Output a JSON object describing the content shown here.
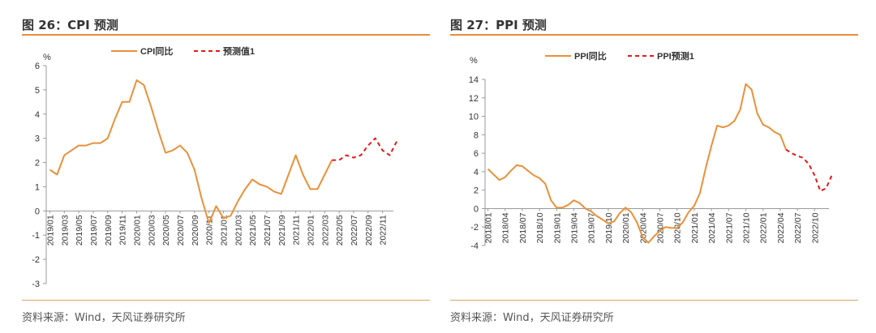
{
  "colors": {
    "actual": "#e8913a",
    "forecast": "#e01b1b",
    "rule": "#e88b3c"
  },
  "left": {
    "title": "图 26：CPI 预测",
    "source": "资料来源：Wind，天风证券研究所"
  },
  "right": {
    "title": "图 27：PPI 预测",
    "source": "资料来源：Wind，天风证券研究所"
  },
  "chart_data": [
    {
      "type": "line",
      "ylabel": "%",
      "ylim": [
        -3,
        6
      ],
      "yticks": [
        "6",
        "5",
        "4",
        "3",
        "2",
        "1",
        "0",
        "-1",
        "-2",
        "-3"
      ],
      "xticks": [
        "2019/01",
        "2019/03",
        "2019/05",
        "2019/07",
        "2019/09",
        "2019/11",
        "2020/01",
        "2020/03",
        "2020/05",
        "2020/07",
        "2020/09",
        "2020/11",
        "2021/01",
        "2021/03",
        "2021/05",
        "2021/07",
        "2021/09",
        "2021/11",
        "2022/01",
        "2022/03",
        "2022/05",
        "2022/07",
        "2022/09",
        "2022/11"
      ],
      "legend_position": "top",
      "series": [
        {
          "name": "CPI同比",
          "style": "solid",
          "start_index": 0,
          "values": [
            1.7,
            1.5,
            2.3,
            2.5,
            2.7,
            2.7,
            2.8,
            2.8,
            3.0,
            3.8,
            4.5,
            4.5,
            5.4,
            5.2,
            4.3,
            3.3,
            2.4,
            2.5,
            2.7,
            2.4,
            1.7,
            0.5,
            -0.5,
            0.2,
            -0.3,
            -0.2,
            0.4,
            0.9,
            1.3,
            1.1,
            1.0,
            0.8,
            0.7,
            1.5,
            2.3,
            1.5,
            0.9,
            0.9,
            1.5,
            2.1
          ]
        },
        {
          "name": "预测值1",
          "style": "dashed",
          "start_index": 39,
          "values": [
            2.1,
            2.1,
            2.3,
            2.2,
            2.3,
            2.7,
            3.0,
            2.5,
            2.3,
            2.9
          ]
        }
      ]
    },
    {
      "type": "line",
      "ylabel": "%",
      "ylim": [
        -4,
        14
      ],
      "yticks": [
        "14",
        "12",
        "10",
        "8",
        "6",
        "4",
        "2",
        "0",
        "-2",
        "-4"
      ],
      "xticks": [
        "2018/01",
        "2018/04",
        "2018/07",
        "2018/10",
        "2019/01",
        "2019/04",
        "2019/07",
        "2019/10",
        "2020/01",
        "2020/04",
        "2020/07",
        "2020/10",
        "2021/01",
        "2021/04",
        "2021/07",
        "2021/10",
        "2022/01",
        "2022/04",
        "2022/07",
        "2022/10"
      ],
      "legend_position": "top",
      "series": [
        {
          "name": "PPI同比",
          "style": "solid",
          "start_index": 0,
          "values": [
            4.3,
            3.7,
            3.1,
            3.4,
            4.1,
            4.7,
            4.6,
            4.1,
            3.6,
            3.3,
            2.7,
            0.9,
            0.1,
            0.1,
            0.4,
            0.9,
            0.6,
            0.0,
            -0.3,
            -0.8,
            -1.2,
            -1.6,
            -1.4,
            -0.5,
            0.1,
            -0.4,
            -1.5,
            -3.1,
            -3.7,
            -3.0,
            -2.4,
            -2.0,
            -2.1,
            -2.1,
            -1.5,
            -0.4,
            0.3,
            1.7,
            4.4,
            6.8,
            9.0,
            8.8,
            9.0,
            9.5,
            10.7,
            13.5,
            12.9,
            10.3,
            9.1,
            8.8,
            8.3,
            8.0,
            6.4
          ]
        },
        {
          "name": "PPI预测1",
          "style": "dashed",
          "start_index": 52,
          "values": [
            6.4,
            6.0,
            5.7,
            5.5,
            4.8,
            3.6,
            1.9,
            2.2,
            3.6
          ]
        }
      ]
    }
  ]
}
